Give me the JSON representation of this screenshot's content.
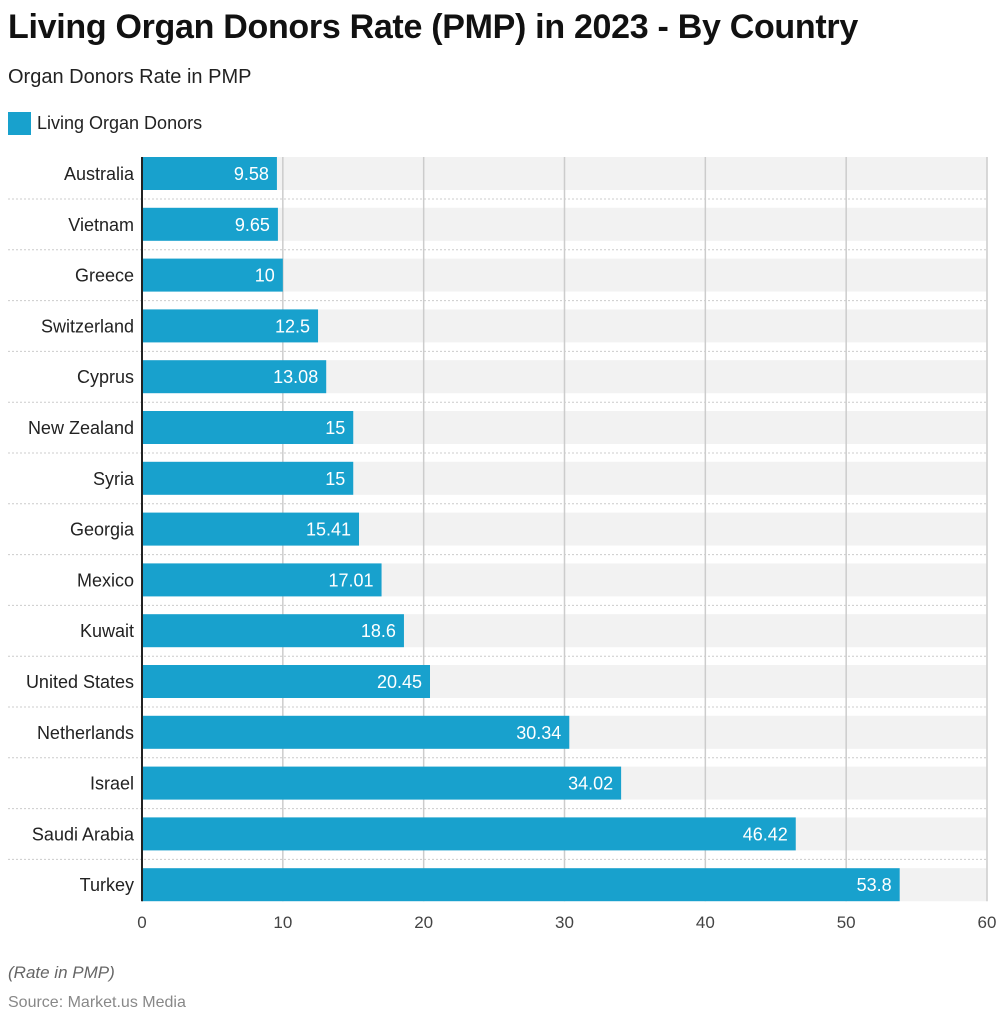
{
  "title": "Living Organ Donors Rate (PMP) in 2023 - By Country",
  "subtitle": "Organ Donors Rate in PMP",
  "note": "(Rate in PMP)",
  "source": "Source: Market.us Media",
  "chart_data": {
    "type": "bar",
    "orientation": "horizontal",
    "categories": [
      "Australia",
      "Vietnam",
      "Greece",
      "Switzerland",
      "Cyprus",
      "New Zealand",
      "Syria",
      "Georgia",
      "Mexico",
      "Kuwait",
      "United States",
      "Netherlands",
      "Israel",
      "Saudi Arabia",
      "Turkey"
    ],
    "series": [
      {
        "name": "Living Organ Donors",
        "values": [
          9.58,
          9.65,
          10,
          12.5,
          13.08,
          15,
          15,
          15.41,
          17.01,
          18.6,
          20.45,
          30.34,
          34.02,
          46.42,
          53.8
        ],
        "color": "#18a1cd"
      }
    ],
    "xlim": [
      0,
      60
    ],
    "xticks": [
      0,
      10,
      20,
      30,
      40,
      50,
      60
    ],
    "grid": true,
    "legend": "top-left"
  }
}
